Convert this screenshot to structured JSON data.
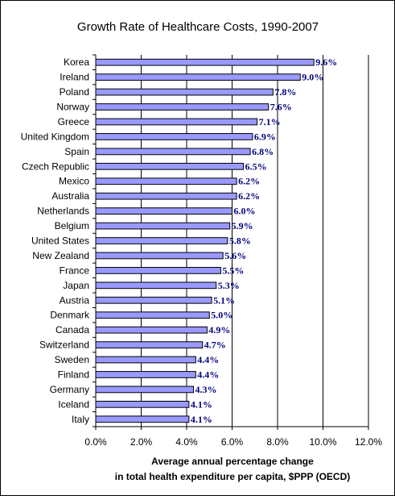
{
  "chart_data": {
    "type": "bar",
    "orientation": "horizontal",
    "title": "Growth Rate of Healthcare Costs, 1990-2007",
    "categories": [
      "Korea",
      "Ireland",
      "Poland",
      "Norway",
      "Greece",
      "United Kingdom",
      "Spain",
      "Czech Republic",
      "Mexico",
      "Australia",
      "Netherlands",
      "Belgium",
      "United States",
      "New Zealand",
      "France",
      "Japan",
      "Austria",
      "Denmark",
      "Canada",
      "Switzerland",
      "Sweden",
      "Finland",
      "Germany",
      "Iceland",
      "Italy"
    ],
    "values": [
      9.6,
      9.0,
      7.8,
      7.6,
      7.1,
      6.9,
      6.8,
      6.5,
      6.2,
      6.2,
      6.0,
      5.9,
      5.8,
      5.6,
      5.5,
      5.3,
      5.1,
      5.0,
      4.9,
      4.7,
      4.4,
      4.4,
      4.3,
      4.1,
      4.1
    ],
    "data_labels": [
      "9.6%",
      "9.0%",
      "7.8%",
      "7.6%",
      "7.1%",
      "6.9%",
      "6.8%",
      "6.5%",
      "6.2%",
      "6.2%",
      "6.0%",
      "5.9%",
      "5.8%",
      "5.6%",
      "5.5%",
      "5.3%",
      "5.1%",
      "5.0%",
      "4.9%",
      "4.7%",
      "4.4%",
      "4.4%",
      "4.3%",
      "4.1%",
      "4.1%"
    ],
    "xlabel_lines": [
      "Average annual percentage change",
      "in total health expenditure per capita, $PPP (OECD)"
    ],
    "ylabel": "",
    "xlim": [
      0,
      12
    ],
    "xticks": [
      0,
      2,
      4,
      6,
      8,
      10,
      12
    ],
    "xtick_labels": [
      "0.0%",
      "2.0%",
      "4.0%",
      "6.0%",
      "8.0%",
      "10.0%",
      "12.0%"
    ],
    "grid": "vertical",
    "legend": "none",
    "colors": {
      "bar_fill": "#9999ff",
      "bar_stroke": "#000000",
      "data_label": "#000080",
      "gridline": "#000000"
    }
  }
}
